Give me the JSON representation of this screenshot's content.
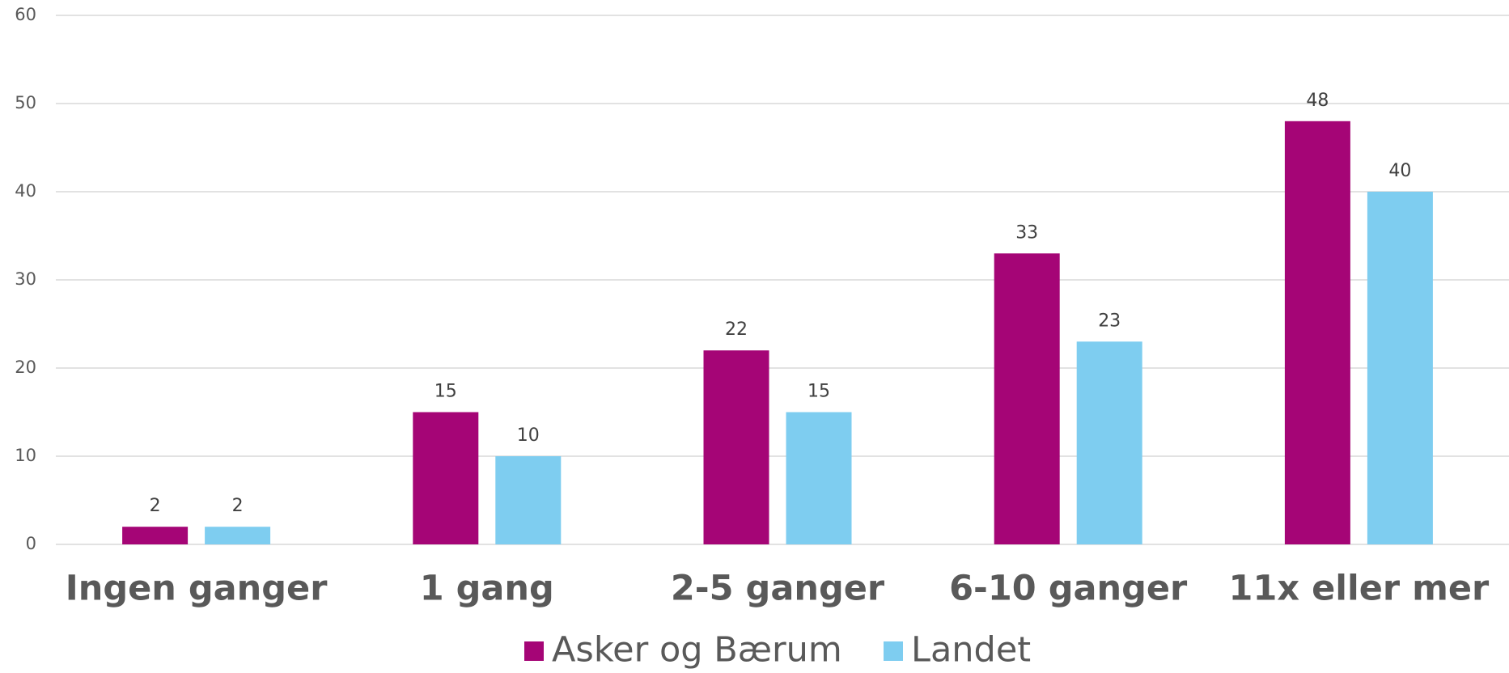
{
  "chart_data": {
    "type": "bar",
    "categories": [
      "Ingen ganger",
      "1 gang",
      "2-5 ganger",
      "6-10 ganger",
      "11x eller mer"
    ],
    "series": [
      {
        "name": "Asker og Bærum",
        "color": "#a50576",
        "values": [
          2,
          15,
          22,
          33,
          48
        ]
      },
      {
        "name": "Landet",
        "color": "#7ecdf0",
        "values": [
          2,
          10,
          15,
          23,
          40
        ]
      }
    ],
    "ylim": [
      0,
      60
    ],
    "yticks": [
      0,
      10,
      20,
      30,
      40,
      50,
      60
    ],
    "grid": true,
    "legend": "bottom"
  }
}
